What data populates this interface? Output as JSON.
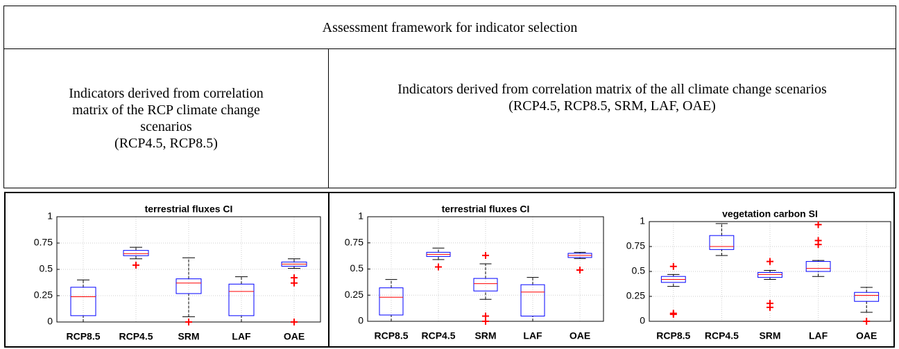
{
  "table": {
    "title": "Assessment framework for indicator selection",
    "columns": [
      {
        "text": "Indicators derived from correlation matrix of the RCP climate change scenarios",
        "scenarios": "(RCP4.5, RCP8.5)"
      },
      {
        "text": "Indicators derived from correlation matrix of the all climate change scenarios",
        "scenarios": "(RCP4.5, RCP8.5, SRM, LAF, OAE)"
      }
    ]
  },
  "chart_data": [
    {
      "type": "box",
      "title": "terrestrial fluxes CI",
      "categories": [
        "RCP8.5",
        "RCP4.5",
        "SRM",
        "LAF",
        "OAE"
      ],
      "ylim": [
        0,
        1
      ],
      "yticks": [
        0,
        0.25,
        0.5,
        0.75,
        1
      ],
      "grid": true,
      "box_color": "#0000ff",
      "median_color": "#ff0000",
      "outlier_color": "#ff0000",
      "boxes": [
        {
          "min": 0,
          "q1": 0.06,
          "median": 0.24,
          "q3": 0.33,
          "max": 0.4,
          "outliers": []
        },
        {
          "min": 0.6,
          "q1": 0.63,
          "median": 0.65,
          "q3": 0.68,
          "max": 0.71,
          "outliers": [
            0.54
          ]
        },
        {
          "min": 0.05,
          "q1": 0.27,
          "median": 0.37,
          "q3": 0.41,
          "max": 0.61,
          "outliers": [
            0
          ]
        },
        {
          "min": 0,
          "q1": 0.06,
          "median": 0.29,
          "q3": 0.36,
          "max": 0.43,
          "outliers": []
        },
        {
          "min": 0.51,
          "q1": 0.53,
          "median": 0.55,
          "q3": 0.57,
          "max": 0.6,
          "outliers": [
            0.42,
            0.37,
            0
          ]
        }
      ]
    },
    {
      "type": "box",
      "title": "terrestrial fluxes CI",
      "categories": [
        "RCP8.5",
        "RCP4.5",
        "SRM",
        "LAF",
        "OAE"
      ],
      "ylim": [
        0,
        1
      ],
      "yticks": [
        0,
        0.25,
        0.5,
        0.75,
        1
      ],
      "grid": true,
      "box_color": "#0000ff",
      "median_color": "#ff0000",
      "outlier_color": "#ff0000",
      "boxes": [
        {
          "min": 0,
          "q1": 0.06,
          "median": 0.23,
          "q3": 0.32,
          "max": 0.4,
          "outliers": []
        },
        {
          "min": 0.59,
          "q1": 0.62,
          "median": 0.64,
          "q3": 0.66,
          "max": 0.7,
          "outliers": [
            0.52
          ]
        },
        {
          "min": 0.21,
          "q1": 0.29,
          "median": 0.36,
          "q3": 0.41,
          "max": 0.55,
          "outliers": [
            0.63,
            0.05,
            0
          ]
        },
        {
          "min": 0,
          "q1": 0.05,
          "median": 0.28,
          "q3": 0.35,
          "max": 0.42,
          "outliers": []
        },
        {
          "min": 0.6,
          "q1": 0.61,
          "median": 0.63,
          "q3": 0.65,
          "max": 0.66,
          "outliers": [
            0.49
          ]
        }
      ]
    },
    {
      "type": "box",
      "title": "vegetation carbon SI",
      "categories": [
        "RCP8.5",
        "RCP4.5",
        "SRM",
        "LAF",
        "OAE"
      ],
      "ylim": [
        0,
        1
      ],
      "yticks": [
        0,
        0.25,
        0.5,
        0.75,
        1
      ],
      "grid": true,
      "box_color": "#0000ff",
      "median_color": "#ff0000",
      "outlier_color": "#ff0000",
      "boxes": [
        {
          "min": 0.35,
          "q1": 0.39,
          "median": 0.42,
          "q3": 0.45,
          "max": 0.47,
          "outliers": [
            0.55,
            0.08,
            0.07
          ]
        },
        {
          "min": 0.66,
          "q1": 0.72,
          "median": 0.75,
          "q3": 0.86,
          "max": 0.98,
          "outliers": []
        },
        {
          "min": 0.42,
          "q1": 0.44,
          "median": 0.47,
          "q3": 0.49,
          "max": 0.51,
          "outliers": [
            0.6,
            0.18,
            0.14
          ]
        },
        {
          "min": 0.45,
          "q1": 0.5,
          "median": 0.53,
          "q3": 0.6,
          "max": 0.61,
          "outliers": [
            0.97,
            0.81,
            0.77
          ]
        },
        {
          "min": 0.09,
          "q1": 0.2,
          "median": 0.26,
          "q3": 0.29,
          "max": 0.34,
          "outliers": [
            0
          ]
        }
      ]
    }
  ]
}
